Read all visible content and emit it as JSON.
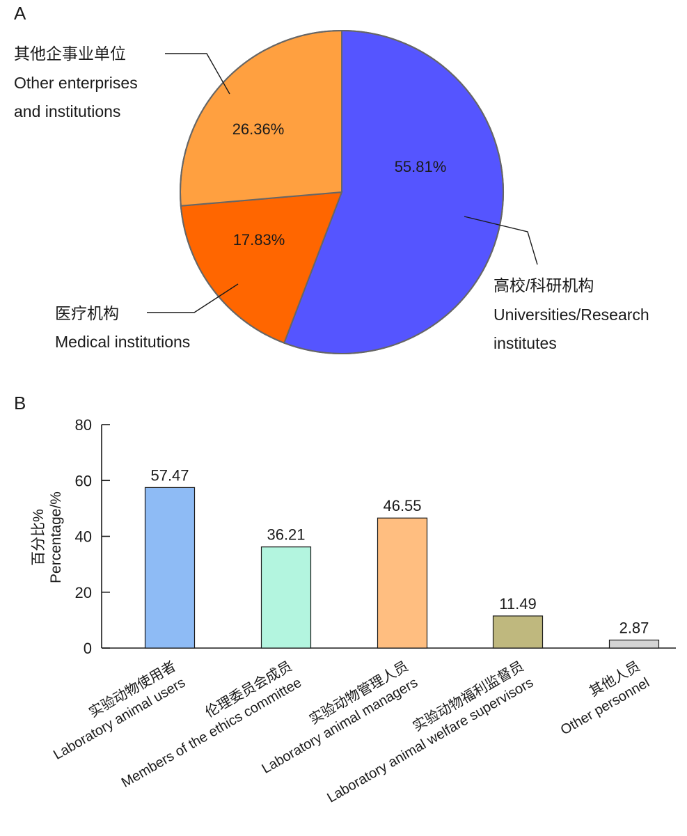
{
  "chart_data": [
    {
      "panel": "A",
      "type": "pie",
      "slices": [
        {
          "value": 55.81,
          "label": "55.81%",
          "name_cn": "高校/科研机构",
          "name_en_line1": "Universities/Research",
          "name_en_line2": "institutes",
          "color": "#5555FF"
        },
        {
          "value": 17.83,
          "label": "17.83%",
          "name_cn": "医疗机构",
          "name_en_line1": "Medical institutions",
          "name_en_line2": "",
          "color": "#FF6600"
        },
        {
          "value": 26.36,
          "label": "26.36%",
          "name_cn": "其他企事业单位",
          "name_en_line1": "Other enterprises",
          "name_en_line2": "and institutions",
          "color": "#FFA040"
        }
      ]
    },
    {
      "panel": "B",
      "type": "bar",
      "ylabel_cn": "百分比%",
      "ylabel_en": "Percentage/%",
      "ylim": [
        0,
        80
      ],
      "yticks": [
        0,
        20,
        40,
        60,
        80
      ],
      "categories": [
        {
          "cn": "实验动物使用者",
          "en": "Laboratory animal users"
        },
        {
          "cn": "伦理委员会成员",
          "en": "Members of the ethics committee"
        },
        {
          "cn": "实验动物管理人员",
          "en": "Laboratory animal managers"
        },
        {
          "cn": "实验动物福利监督员",
          "en": "Laboratory animal welfare supervisors"
        },
        {
          "cn": "其他人员",
          "en": "Other personnel"
        }
      ],
      "values": [
        57.47,
        36.21,
        46.55,
        11.49,
        2.87
      ],
      "value_labels": [
        "57.47",
        "36.21",
        "46.55",
        "11.49",
        "2.87"
      ],
      "colors": [
        "#8EBBF5",
        "#B3F5DF",
        "#FFBE80",
        "#BFB87E",
        "#D4D4D4"
      ]
    }
  ]
}
